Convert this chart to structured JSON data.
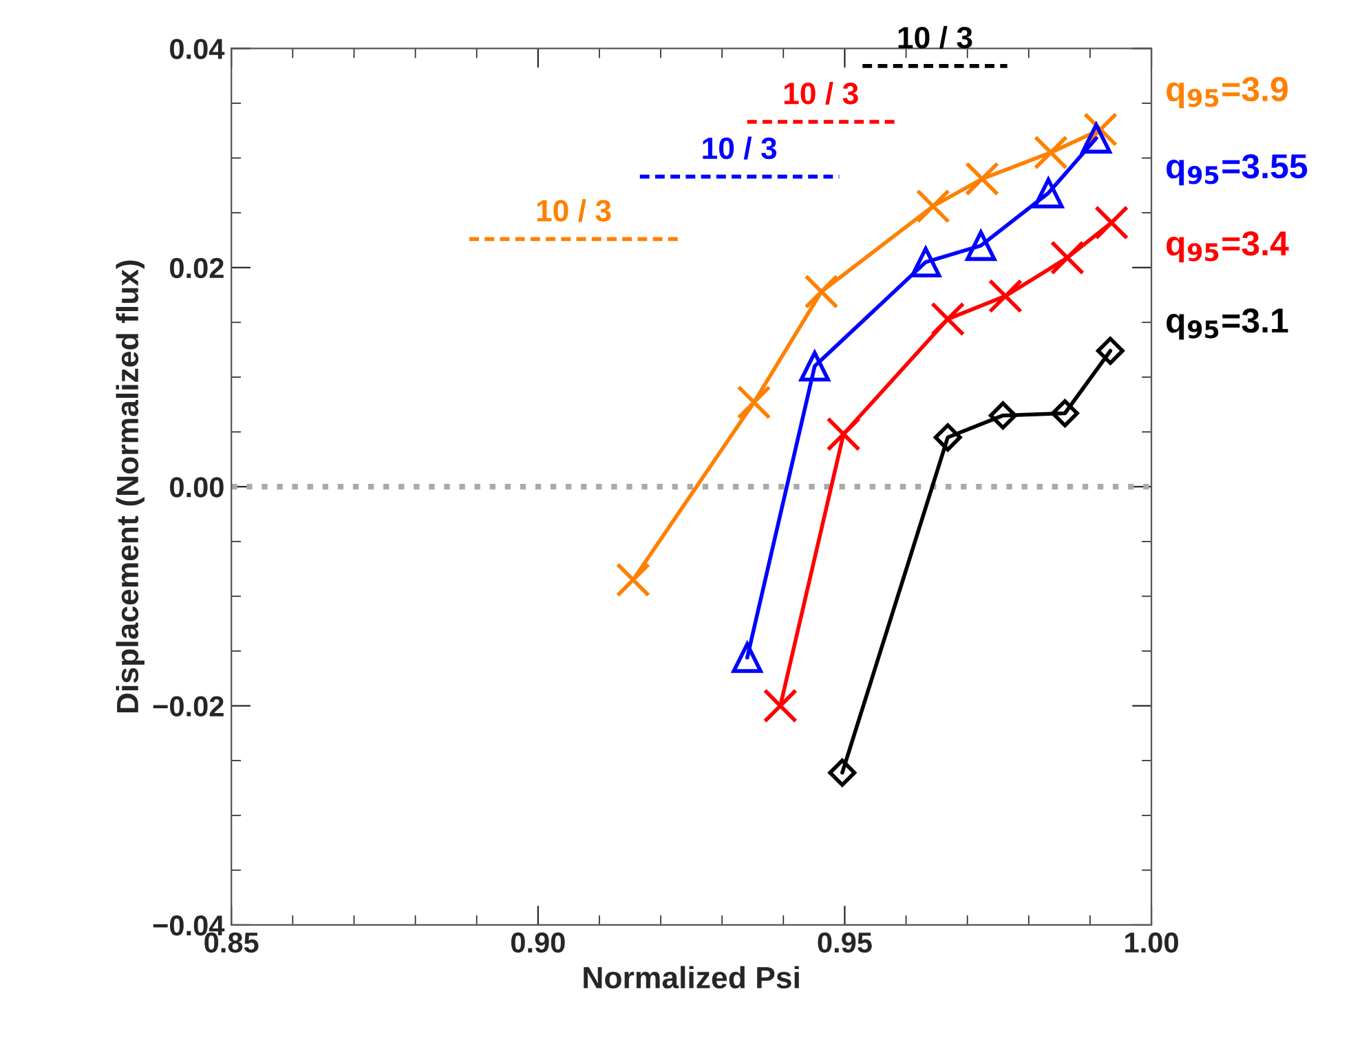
{
  "chart_data": {
    "type": "line",
    "xlabel": "Normalized Psi",
    "ylabel": "Displacement (Normalized flux)",
    "xlim": [
      0.85,
      1.0
    ],
    "xticks": [
      {
        "value": 0.85,
        "label": "0.85"
      },
      {
        "value": 0.9,
        "label": "0.90"
      },
      {
        "value": 0.95,
        "label": "0.95"
      },
      {
        "value": 1.0,
        "label": "1.00"
      }
    ],
    "ylim": [
      -0.04,
      0.04
    ],
    "yticks": [
      {
        "value": -0.04,
        "label": "−0.04"
      },
      {
        "value": -0.02,
        "label": "−0.02"
      },
      {
        "value": 0,
        "label": "0.00"
      },
      {
        "value": 0.02,
        "label": "0.02"
      },
      {
        "value": 0.04,
        "label": "0.04"
      }
    ],
    "grid": false,
    "legend": false,
    "series": [
      {
        "name": "q$_{95}$=3.9",
        "color": "#ff8000",
        "marker": "cross",
        "x": [
          0.9155,
          0.9352,
          0.9462,
          0.9644,
          0.9724,
          0.9836,
          0.9917
        ],
        "values": [
          -0.0085,
          0.0077,
          0.0178,
          0.0256,
          0.0281,
          0.0305,
          0.0326
        ]
      },
      {
        "name": "q$_{95}$=3.55",
        "color": "#0000ff",
        "marker": "triangle",
        "x": [
          0.9341,
          0.9451,
          0.9632,
          0.9722,
          0.9832,
          0.991
        ],
        "values": [
          -0.0156,
          0.011,
          0.0205,
          0.022,
          0.0268,
          0.0318
        ]
      },
      {
        "name": "q$_{95}$=3.4",
        "color": "#ff0000",
        "marker": "cross",
        "x": [
          0.9395,
          0.9498,
          0.9668,
          0.9762,
          0.9863,
          0.9935
        ],
        "values": [
          -0.02,
          0.0048,
          0.0153,
          0.0174,
          0.0209,
          0.0241
        ]
      },
      {
        "name": "q$_{95}$=3.1",
        "color": "#000000",
        "marker": "diamond",
        "x": [
          0.9496,
          0.9668,
          0.9758,
          0.9859,
          0.9933
        ],
        "values": [
          -0.0261,
          0.0045,
          0.0065,
          0.0067,
          0.0124
        ]
      },
      {
        "color": "#ff8000",
        "line_style": "dashed",
        "marker": "none",
        "x": [
          0.8888,
          0.9229
        ],
        "values": [
          0.0226,
          0.0226
        ]
      },
      {
        "color": "#0000ff",
        "line_style": "dashed",
        "marker": "none",
        "x": [
          0.9166,
          0.9491
        ],
        "values": [
          0.0283,
          0.0283
        ]
      },
      {
        "color": "#ff0000",
        "line_style": "dashed",
        "marker": "none",
        "x": [
          0.9341,
          0.9581
        ],
        "values": [
          0.0333,
          0.0333
        ]
      },
      {
        "color": "#000000",
        "line_style": "dashed",
        "marker": "none",
        "x": [
          0.9529,
          0.9765
        ],
        "values": [
          0.0384,
          0.0384
        ]
      }
    ],
    "ref_lines": [
      {
        "axis": "y",
        "value": 0,
        "color": "#aaaaaa",
        "line_style": "dotted"
      }
    ],
    "annotations": [
      {
        "text": "10 / 3",
        "x": 0.9058,
        "y": 0.0226
      },
      {
        "text": "10 / 3",
        "x": 0.9328,
        "y": 0.0283
      },
      {
        "text": "10 / 3",
        "x": 0.9461,
        "y": 0.0333
      },
      {
        "text": "10 / 3",
        "x": 0.9647,
        "y": 0.0384
      }
    ]
  }
}
